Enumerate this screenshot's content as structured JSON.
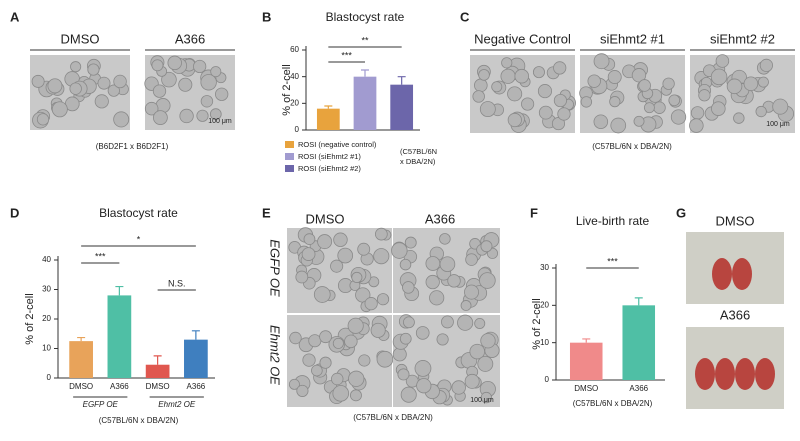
{
  "panels": {
    "letters": [
      "A",
      "B",
      "C",
      "D",
      "E",
      "F",
      "G"
    ],
    "A": {
      "labels": [
        "DMSO",
        "A366"
      ],
      "scale": "100 μm",
      "note": "(B6D2F1 x B6D2F1)"
    },
    "C": {
      "labels": [
        "Negative Control",
        "siEhmt2 #1",
        "siEhmt2 #2"
      ],
      "scale": "100 μm",
      "note": "(C57BL/6N x DBA/2N)"
    },
    "E": {
      "columns": [
        "DMSO",
        "A366"
      ],
      "rows": [
        "EGFP OE",
        "Ehmt2 OE"
      ],
      "scale": "100 μm",
      "note": "(C57BL/6N x DBA/2N)"
    },
    "G": {
      "labels": [
        "DMSO",
        "A366"
      ]
    }
  },
  "chart_data": [
    {
      "type": "bar",
      "title": "Blastocyst rate",
      "ylabel": "% of 2-cell",
      "categories": [
        "ROSI (negative control)",
        "ROSI (siEhmt2 #1)",
        "ROSI (siEhmt2 #2)"
      ],
      "values": [
        16,
        40,
        34
      ],
      "errors": [
        2,
        5,
        6
      ],
      "colors": [
        "#e8a33d",
        "#a19bd0",
        "#6c66aa"
      ],
      "ylim": [
        0,
        60
      ],
      "yticks": [
        0,
        20,
        40,
        60
      ],
      "annotations": [
        "***",
        "**"
      ],
      "note": [
        "(C57BL/6N",
        "x DBA/2N)"
      ]
    },
    {
      "type": "bar",
      "title": "Blastocyst rate",
      "ylabel": "% of 2-cell",
      "categories": [
        "DMSO",
        "A366",
        "DMSO",
        "A366"
      ],
      "groups": [
        "EGFP OE",
        "Ehmt2 OE"
      ],
      "values": [
        12.5,
        28,
        4.5,
        13
      ],
      "errors": [
        1.2,
        3,
        3,
        3
      ],
      "colors": [
        "#e8a35a",
        "#4fbfa5",
        "#e0574f",
        "#3f7fbf"
      ],
      "ylim": [
        0,
        40
      ],
      "yticks": [
        0,
        10,
        20,
        30,
        40
      ],
      "annotations": [
        "***",
        "*",
        "N.S."
      ],
      "note": "(C57BL/6N x DBA/2N)"
    },
    {
      "type": "bar",
      "title": "Live-birth rate",
      "ylabel": "% of 2-cell",
      "categories": [
        "DMSO",
        "A366"
      ],
      "values": [
        10,
        20
      ],
      "errors": [
        1,
        2
      ],
      "colors": [
        "#f08a8a",
        "#4fbfa5"
      ],
      "ylim": [
        0,
        30
      ],
      "yticks": [
        0,
        10,
        20,
        30
      ],
      "annotations": [
        "***"
      ],
      "note": "(C57BL/6N x DBA/2N)"
    }
  ]
}
